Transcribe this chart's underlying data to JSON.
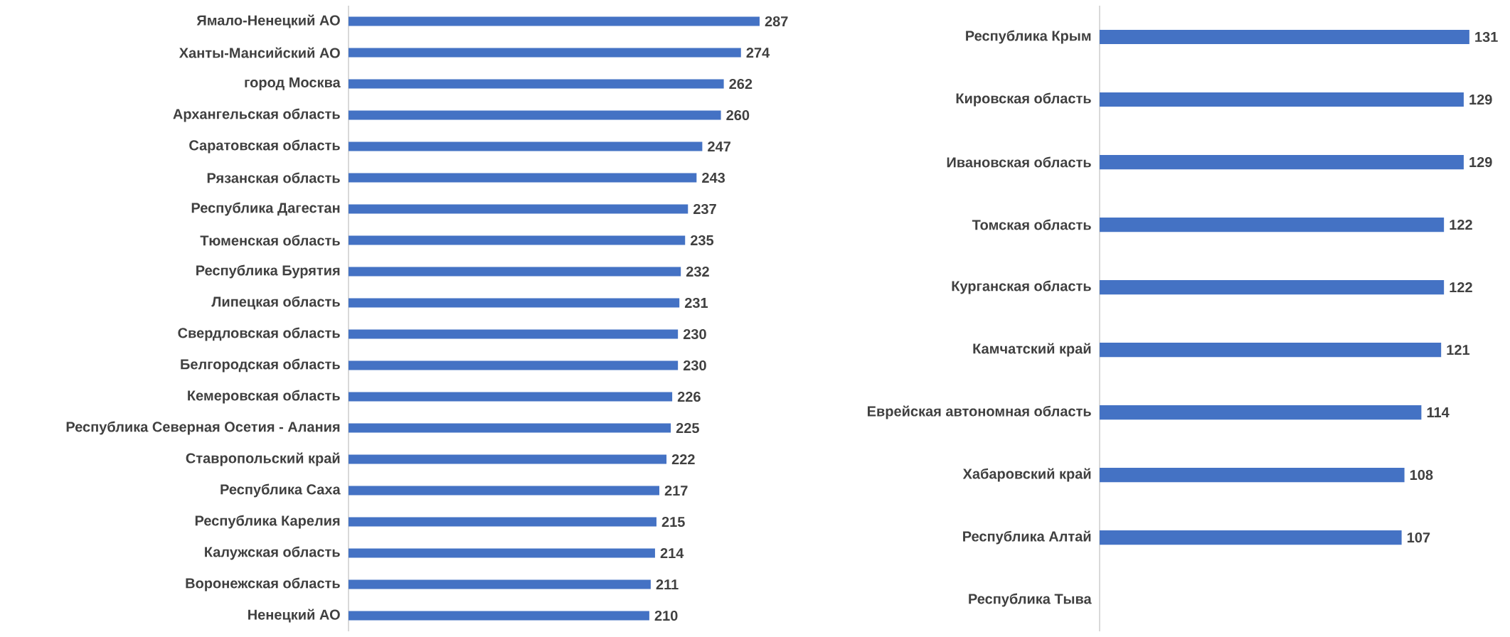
{
  "chart_data": [
    {
      "type": "bar",
      "orientation": "horizontal",
      "categories": [
        "Ямало-Ненецкий АО",
        "Ханты-Мансийский АО",
        "город Москва",
        "Архангельская область",
        "Саратовская область",
        "Рязанская область",
        "Республика Дагестан",
        "Тюменская область",
        "Республика Бурятия",
        "Липецкая область",
        "Свердловская область",
        "Белгородская область",
        "Кемеровская область",
        "Республика Северная Осетия - Алания",
        "Ставропольский край",
        "Республика Саха",
        "Республика Карелия",
        "Калужская область",
        "Воронежская область",
        "Ненецкий АО"
      ],
      "values": [
        287,
        274,
        262,
        260,
        247,
        243,
        237,
        235,
        232,
        231,
        230,
        230,
        226,
        225,
        222,
        217,
        215,
        214,
        211,
        210
      ],
      "color": "#4472c4",
      "data_labels": true,
      "tick_labels": "y"
    },
    {
      "type": "bar",
      "orientation": "horizontal",
      "categories": [
        "Республика Крым",
        "Кировская область",
        "Ивановская область",
        "Томская область",
        "Курганская область",
        "Камчатский край",
        "Еврейская автономная область",
        "Хабаровский край",
        "Республика Алтай",
        "Республика Тыва"
      ],
      "values": [
        131,
        129,
        129,
        122,
        122,
        121,
        114,
        108,
        107,
        null
      ],
      "color": "#4472c4",
      "data_labels": true,
      "tick_labels": "y"
    }
  ]
}
